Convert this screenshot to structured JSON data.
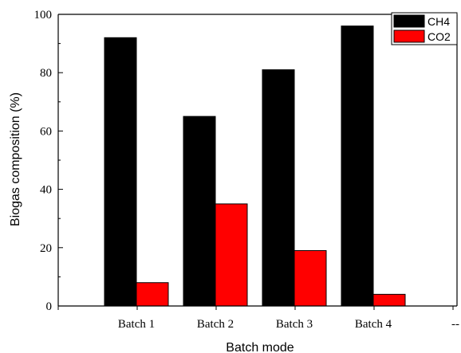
{
  "chart_data": {
    "type": "bar",
    "categories": [
      "Batch 1",
      "Batch 2",
      "Batch 3",
      "Batch 4"
    ],
    "extra_x_tick_label": "--",
    "series": [
      {
        "name": "CH4",
        "values": [
          92,
          65,
          81,
          96
        ],
        "color": "#000000"
      },
      {
        "name": "CO2",
        "values": [
          8,
          35,
          19,
          4
        ],
        "color": "#ff0000"
      }
    ],
    "xlabel": "Batch mode",
    "ylabel": "Biogas composition (%)",
    "ylim": [
      0,
      100
    ],
    "yticks": [
      0,
      20,
      40,
      60,
      80,
      100
    ],
    "grid": false,
    "legend_position": "top-right"
  }
}
